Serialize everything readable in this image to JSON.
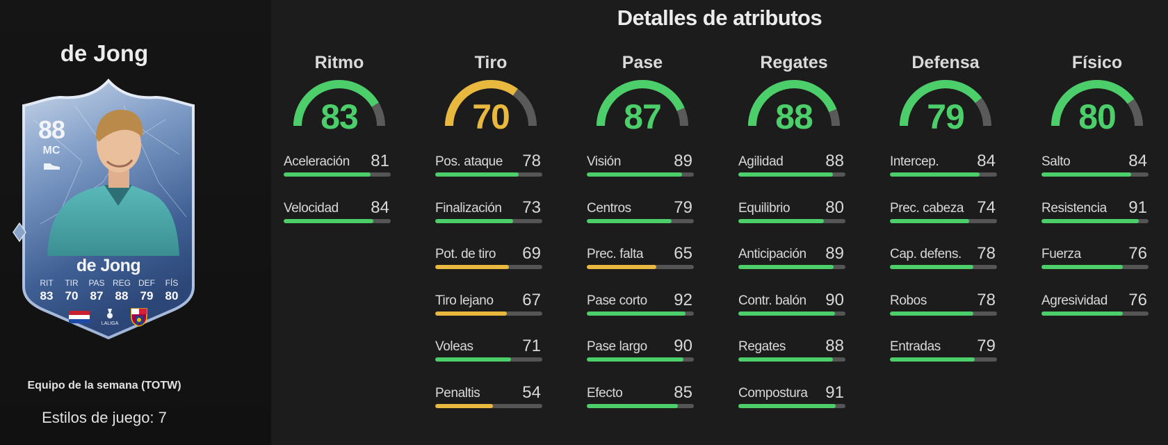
{
  "player": {
    "name": "de Jong",
    "card_name": "de Jong",
    "rating": "88",
    "position": "MC",
    "card_stats": [
      {
        "label": "RIT",
        "value": "83"
      },
      {
        "label": "TIR",
        "value": "70"
      },
      {
        "label": "PAS",
        "value": "87"
      },
      {
        "label": "REG",
        "value": "88"
      },
      {
        "label": "DEF",
        "value": "79"
      },
      {
        "label": "FÍS",
        "value": "80"
      }
    ],
    "promo": "Equipo de la semana (TOTW)",
    "playstyles": "Estilos de juego: 7",
    "league_badge_text": "LALIGA"
  },
  "title": "Detalles de atributos",
  "colors": {
    "green": "#4ccf6a",
    "yellow": "#e8b93e",
    "track": "#555555"
  },
  "categories": [
    {
      "name": "Ritmo",
      "value": "83",
      "percent": 83,
      "color": "green",
      "stats": [
        {
          "label": "Aceleración",
          "value": "81",
          "percent": 81,
          "color": "green"
        },
        {
          "label": "Velocidad",
          "value": "84",
          "percent": 84,
          "color": "green"
        }
      ]
    },
    {
      "name": "Tiro",
      "value": "70",
      "percent": 70,
      "color": "yellow",
      "stats": [
        {
          "label": "Pos. ataque",
          "value": "78",
          "percent": 78,
          "color": "green"
        },
        {
          "label": "Finalización",
          "value": "73",
          "percent": 73,
          "color": "green"
        },
        {
          "label": "Pot. de tiro",
          "value": "69",
          "percent": 69,
          "color": "yellow"
        },
        {
          "label": "Tiro lejano",
          "value": "67",
          "percent": 67,
          "color": "yellow"
        },
        {
          "label": "Voleas",
          "value": "71",
          "percent": 71,
          "color": "green"
        },
        {
          "label": "Penaltis",
          "value": "54",
          "percent": 54,
          "color": "yellow"
        }
      ]
    },
    {
      "name": "Pase",
      "value": "87",
      "percent": 87,
      "color": "green",
      "stats": [
        {
          "label": "Visión",
          "value": "89",
          "percent": 89,
          "color": "green"
        },
        {
          "label": "Centros",
          "value": "79",
          "percent": 79,
          "color": "green"
        },
        {
          "label": "Prec. falta",
          "value": "65",
          "percent": 65,
          "color": "yellow"
        },
        {
          "label": "Pase corto",
          "value": "92",
          "percent": 92,
          "color": "green"
        },
        {
          "label": "Pase largo",
          "value": "90",
          "percent": 90,
          "color": "green"
        },
        {
          "label": "Efecto",
          "value": "85",
          "percent": 85,
          "color": "green"
        }
      ]
    },
    {
      "name": "Regates",
      "value": "88",
      "percent": 88,
      "color": "green",
      "stats": [
        {
          "label": "Agilidad",
          "value": "88",
          "percent": 88,
          "color": "green"
        },
        {
          "label": "Equilibrio",
          "value": "80",
          "percent": 80,
          "color": "green"
        },
        {
          "label": "Anticipación",
          "value": "89",
          "percent": 89,
          "color": "green"
        },
        {
          "label": "Contr. balón",
          "value": "90",
          "percent": 90,
          "color": "green"
        },
        {
          "label": "Regates",
          "value": "88",
          "percent": 88,
          "color": "green"
        },
        {
          "label": "Compostura",
          "value": "91",
          "percent": 91,
          "color": "green"
        }
      ]
    },
    {
      "name": "Defensa",
      "value": "79",
      "percent": 79,
      "color": "green",
      "stats": [
        {
          "label": "Intercep.",
          "value": "84",
          "percent": 84,
          "color": "green"
        },
        {
          "label": "Prec. cabeza",
          "value": "74",
          "percent": 74,
          "color": "green"
        },
        {
          "label": "Cap. defens.",
          "value": "78",
          "percent": 78,
          "color": "green"
        },
        {
          "label": "Robos",
          "value": "78",
          "percent": 78,
          "color": "green"
        },
        {
          "label": "Entradas",
          "value": "79",
          "percent": 79,
          "color": "green"
        }
      ]
    },
    {
      "name": "Físico",
      "value": "80",
      "percent": 80,
      "color": "green",
      "stats": [
        {
          "label": "Salto",
          "value": "84",
          "percent": 84,
          "color": "green"
        },
        {
          "label": "Resistencia",
          "value": "91",
          "percent": 91,
          "color": "green"
        },
        {
          "label": "Fuerza",
          "value": "76",
          "percent": 76,
          "color": "green"
        },
        {
          "label": "Agresividad",
          "value": "76",
          "percent": 76,
          "color": "green"
        }
      ]
    }
  ]
}
